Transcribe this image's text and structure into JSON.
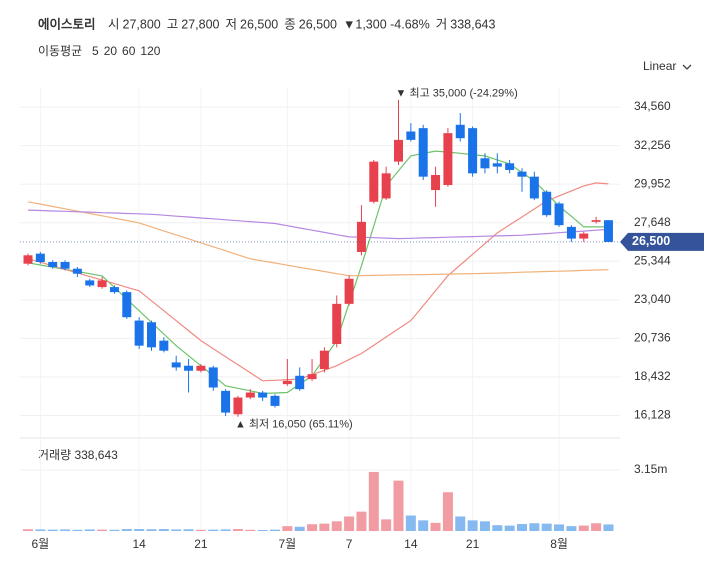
{
  "header": {
    "name": "에이스토리",
    "items": [
      [
        "시",
        "27,800"
      ],
      [
        "고",
        "27,800"
      ],
      [
        "저",
        "26,500"
      ],
      [
        "종",
        "26,500"
      ]
    ],
    "change": "▼1,300 -4.68%",
    "volume": [
      "거",
      "338,643"
    ]
  },
  "chart_data": {
    "type": "candlestick",
    "scale_label": "Linear",
    "ma_title": "이동평균",
    "categories": [
      null,
      "6월",
      null,
      null,
      null,
      null,
      null,
      null,
      null,
      "14",
      null,
      null,
      null,
      null,
      "21",
      null,
      null,
      null,
      null,
      null,
      null,
      "7월",
      null,
      null,
      null,
      null,
      "7",
      null,
      null,
      null,
      null,
      "14",
      null,
      null,
      null,
      null,
      "21",
      null,
      null,
      null,
      null,
      null,
      null,
      "8월",
      null,
      null,
      null,
      null
    ],
    "open": [
      25200,
      25800,
      25300,
      25300,
      24900,
      24200,
      23800,
      23800,
      23500,
      21800,
      21700,
      20600,
      19300,
      19100,
      18800,
      19000,
      17600,
      16200,
      17200,
      17500,
      17300,
      18000,
      18500,
      18300,
      18900,
      20400,
      22800,
      25900,
      28900,
      29100,
      31300,
      33100,
      33300,
      29600,
      29900,
      33500,
      33300,
      31500,
      31200,
      31200,
      30700,
      30400,
      29500,
      28800,
      27400,
      26700,
      27700,
      27800
    ],
    "high": [
      25800,
      25900,
      25400,
      25400,
      25000,
      24300,
      24400,
      23900,
      23600,
      22000,
      21800,
      20800,
      19700,
      19500,
      19200,
      19100,
      17700,
      17300,
      17700,
      17600,
      17400,
      19500,
      19000,
      19500,
      20200,
      23300,
      24500,
      28700,
      31400,
      31000,
      35000,
      33600,
      33500,
      31000,
      33300,
      34200,
      33400,
      31800,
      31800,
      31400,
      30900,
      30700,
      29600,
      28900,
      27500,
      27100,
      28000,
      27800
    ],
    "low": [
      25100,
      25200,
      24900,
      24800,
      24400,
      23800,
      23700,
      23400,
      21900,
      20100,
      20000,
      19900,
      18800,
      17500,
      18700,
      17600,
      16100,
      16050,
      17100,
      17000,
      16600,
      17900,
      17600,
      18200,
      18700,
      20200,
      22700,
      25700,
      28800,
      29000,
      31100,
      32500,
      30200,
      28600,
      29800,
      32500,
      30400,
      30600,
      30600,
      30600,
      29500,
      29000,
      28000,
      27400,
      26500,
      26500,
      27600,
      26500
    ],
    "close": [
      25700,
      25300,
      25000,
      24900,
      24600,
      23900,
      24200,
      23500,
      22000,
      20300,
      20200,
      20000,
      19000,
      18800,
      19100,
      17800,
      16300,
      17200,
      17500,
      17200,
      16700,
      18200,
      17700,
      18600,
      20000,
      22800,
      24300,
      27700,
      31300,
      30600,
      32600,
      32600,
      30400,
      30500,
      33000,
      32700,
      30600,
      30900,
      31000,
      30800,
      30400,
      29100,
      28100,
      27500,
      26700,
      27000,
      27800,
      26500
    ],
    "up_color": "#e8414e",
    "down_color": "#1a73e8",
    "volume_up_color": "#f19ba2",
    "volume_down_color": "#86b9f0",
    "series": [
      {
        "name": "5",
        "color": "#6cc36a",
        "values": [
          25250,
          25120,
          24990,
          24860,
          24730,
          24600,
          24470,
          23780,
          23080,
          22390,
          21690,
          21000,
          20300,
          19700,
          19100,
          18500,
          17900,
          17750,
          17600,
          17440,
          17470,
          17500,
          18000,
          18500,
          19550,
          20600,
          22840,
          25070,
          27460,
          29850,
          30750,
          31640,
          31790,
          31930,
          31870,
          31800,
          31720,
          31640,
          31400,
          31160,
          30650,
          30140,
          29400,
          28650,
          28030,
          27400,
          27400,
          27400
        ]
      },
      {
        "name": "20",
        "color": "#f08a82",
        "values": [
          25500,
          25290,
          25070,
          24860,
          24650,
          24430,
          24220,
          24010,
          23790,
          23580,
          22980,
          22390,
          21790,
          21200,
          20600,
          20120,
          19640,
          19160,
          18680,
          18200,
          18230,
          18270,
          18300,
          18570,
          18830,
          19100,
          19470,
          19830,
          20320,
          20820,
          21310,
          21800,
          22690,
          23590,
          24480,
          25120,
          25760,
          26400,
          27040,
          27520,
          27990,
          28470,
          28950,
          29250,
          29550,
          29850,
          30030,
          29970
        ]
      },
      {
        "name": "60",
        "color": "#f0b27a",
        "values": [
          28900,
          28760,
          28620,
          28480,
          28340,
          28200,
          28060,
          27920,
          27780,
          27640,
          27400,
          27160,
          26920,
          26690,
          26450,
          26210,
          25970,
          25730,
          25490,
          25360,
          25240,
          25110,
          24980,
          24850,
          24730,
          24600,
          24480,
          24490,
          24500,
          24520,
          24530,
          24540,
          24550,
          24560,
          24580,
          24590,
          24600,
          24620,
          24640,
          24660,
          24690,
          24710,
          24730,
          24750,
          24770,
          24800,
          24820,
          24840
        ]
      },
      {
        "name": "120",
        "color": "#b687e0",
        "values": [
          28400,
          28380,
          28350,
          28330,
          28300,
          28280,
          28250,
          28230,
          28200,
          28180,
          28150,
          28100,
          28040,
          27990,
          27930,
          27880,
          27820,
          27770,
          27710,
          27660,
          27600,
          27470,
          27330,
          27200,
          27070,
          26930,
          26800,
          26780,
          26750,
          26730,
          26700,
          26720,
          26740,
          26760,
          26780,
          26800,
          26820,
          26840,
          26860,
          26880,
          26900,
          26950,
          27000,
          27050,
          27100,
          27150,
          27200,
          27250
        ]
      }
    ],
    "ylim": [
      15200,
      35700
    ],
    "yticks": [
      {
        "value": 16128,
        "label": "16,128"
      },
      {
        "value": 18432,
        "label": "18,432"
      },
      {
        "value": 20736,
        "label": "20,736"
      },
      {
        "value": 23040,
        "label": "23,040"
      },
      {
        "value": 25344,
        "label": "25,344"
      },
      {
        "value": 27648,
        "label": "27,648"
      },
      {
        "value": 29952,
        "label": "29,952"
      },
      {
        "value": 32256,
        "label": "32,256"
      },
      {
        "value": 34560,
        "label": "34,560"
      }
    ],
    "price_tag": {
      "value": 26500,
      "label": "26,500"
    },
    "annotations": [
      {
        "index": 30,
        "value": 35000,
        "text": "▼ 최고 35,000 (-24.29%)"
      },
      {
        "index": 17,
        "value": 16050,
        "text": "▲ 최저 16,050 (65.11%)"
      }
    ],
    "volume_title": "거래량 338,643",
    "volume": [
      90000,
      80000,
      70000,
      80000,
      60000,
      80000,
      70000,
      60000,
      100000,
      100000,
      90000,
      100000,
      80000,
      90000,
      60000,
      70000,
      80000,
      100000,
      60000,
      50000,
      70000,
      250000,
      220000,
      350000,
      380000,
      500000,
      750000,
      1000000,
      3050000,
      600000,
      2600000,
      800000,
      550000,
      420000,
      2000000,
      750000,
      550000,
      500000,
      300000,
      280000,
      360000,
      400000,
      380000,
      340000,
      250000,
      280000,
      400000,
      338643
    ],
    "volume_ylim": [
      0,
      4440000
    ],
    "volume_ticks": [
      {
        "value": 3150000,
        "label": "3.15m"
      }
    ]
  }
}
